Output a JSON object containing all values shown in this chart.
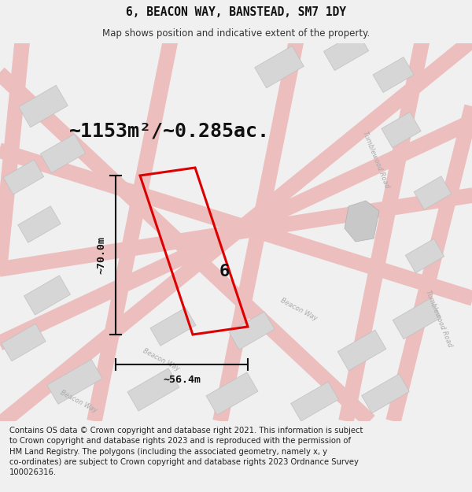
{
  "title": "6, BEACON WAY, BANSTEAD, SM7 1DY",
  "subtitle": "Map shows position and indicative extent of the property.",
  "footer": "Contains OS data © Crown copyright and database right 2021. This information is subject\nto Crown copyright and database rights 2023 and is reproduced with the permission of\nHM Land Registry. The polygons (including the associated geometry, namely x, y\nco-ordinates) are subject to Crown copyright and database rights 2023 Ordnance Survey\n100026316.",
  "area_label": "~1153m²/~0.285ac.",
  "width_label": "~56.4m",
  "height_label": "~70.0m",
  "number_label": "6",
  "bg_color": "#f0f0f0",
  "map_bg": "#ffffff",
  "plot_color": "#dd0000",
  "road_fill": "#f7d0d0",
  "road_edge": "#e8aaaa",
  "building_face": "#d6d6d6",
  "building_edge": "#c0c0c0",
  "dim_color": "#111111",
  "street_label_color": "#aaaaaa",
  "title_fontsize": 10.5,
  "subtitle_fontsize": 8.5,
  "footer_fontsize": 7.2,
  "area_fontsize": 18,
  "dim_fontsize": 9.5,
  "number_fontsize": 16
}
